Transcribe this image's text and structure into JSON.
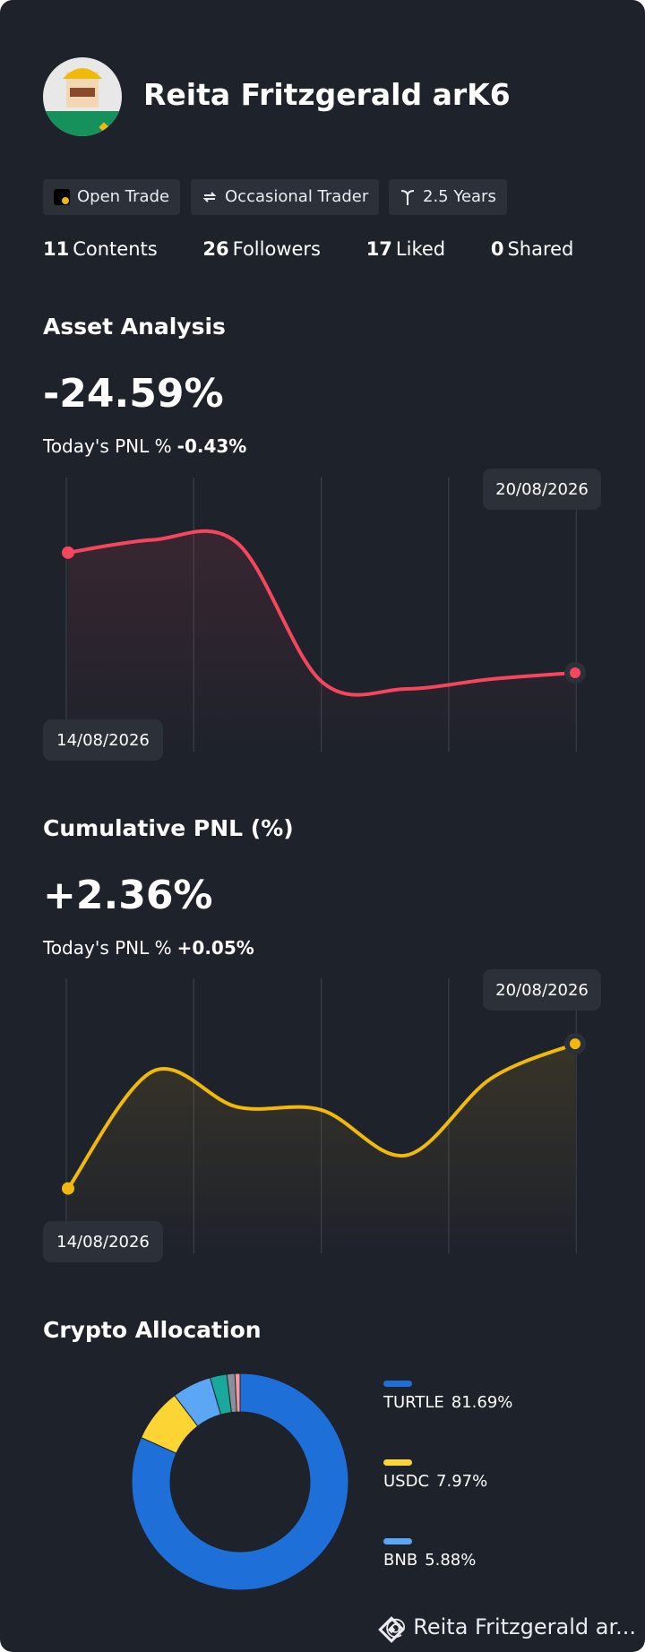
{
  "profile": {
    "name": "Reita Fritzgerald arK6",
    "badges": [
      "Open Trade",
      "Occasional Trader",
      "2.5 Years"
    ],
    "stats": [
      {
        "value": 11,
        "label": "Contents"
      },
      {
        "value": 26,
        "label": "Followers"
      },
      {
        "value": 17,
        "label": "Liked"
      },
      {
        "value": 0,
        "label": "Shared"
      }
    ]
  },
  "asset_analysis": {
    "title": "Asset Analysis",
    "value": "-24.59%",
    "today_label": "Today's PNL %",
    "today_value": "-0.43%",
    "chart": {
      "type": "line",
      "x": [
        "14/08/2026",
        null,
        null,
        null,
        null,
        null,
        "20/08/2026"
      ],
      "values": [
        0,
        2.6,
        2.0,
        -26.4,
        -27.9,
        -25.9,
        -24.59
      ],
      "ylim": [
        -40,
        15
      ],
      "color": "#f6465d"
    }
  },
  "cumulative_pnl": {
    "title": "Cumulative PNL (%)",
    "value": "+2.36%",
    "today_label": "Today's PNL %",
    "today_value": "+0.05%",
    "chart": {
      "type": "line",
      "x": [
        "14/08/2026",
        null,
        null,
        null,
        null,
        null,
        "20/08/2026"
      ],
      "values": [
        0,
        1.91,
        1.33,
        1.28,
        0.54,
        1.79,
        2.36
      ],
      "ylim": [
        -1,
        3.4
      ],
      "color": "#f0b90b"
    }
  },
  "crypto_allocation": {
    "title": "Crypto Allocation",
    "chart": {
      "type": "pie",
      "categories": [
        "TURTLE",
        "USDC",
        "BNB",
        null,
        null,
        null
      ],
      "values": [
        81.69,
        7.97,
        5.88,
        2.5,
        1.2,
        0.76
      ],
      "value_labels": [
        "81.69%",
        "7.97%",
        "5.88%",
        null,
        null,
        null
      ],
      "colors": [
        "#1f6fd8",
        "#fcd535",
        "#5ca7f5",
        "#1aa79c",
        "#8a8f99",
        "#f49ba0"
      ]
    }
  },
  "footer": "@ Reita Fritzgerald ar..."
}
